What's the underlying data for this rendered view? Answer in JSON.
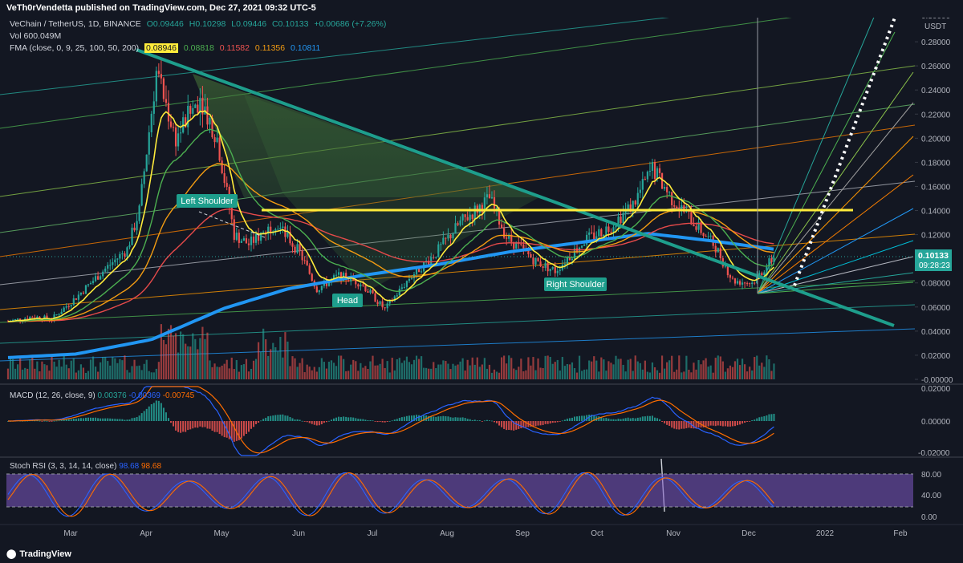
{
  "header": {
    "publisher": "VeTh0rVendetta published on TradingView.com, Dec 27, 2021 09:32 UTC-5"
  },
  "footer": {
    "brand": "TradingView"
  },
  "main_legend": {
    "symbol": "VeChain / TetherUS, 1D, BINANCE",
    "open": "O0.09446",
    "high": "H0.10298",
    "low": "L0.09446",
    "close": "C0.10133",
    "change": "+0.00686 (+7.26%)",
    "volume": "Vol 600.049M",
    "fma_label": "FMA (close, 0, 9, 25, 100, 50, 200)",
    "fma_values": [
      "0.08946",
      "0.08818",
      "0.11582",
      "0.11356",
      "0.10811"
    ]
  },
  "macd_legend": {
    "label": "MACD (12, 26, close, 9)",
    "values": [
      "0.00376",
      "-0.00369",
      "-0.00745"
    ]
  },
  "stoch_legend": {
    "label": "Stoch RSI (3, 3, 14, 14, close)",
    "values": [
      "98.68",
      "98.68"
    ]
  },
  "price_tag": {
    "price": "0.10133",
    "countdown": "09:28:23"
  },
  "colors": {
    "bg": "#131722",
    "up": "#26a69a",
    "down": "#ef5350",
    "ma200": "#2196f3",
    "ma9": "#ffeb3b",
    "neckline": "#ffeb3b",
    "trendline": "#1e9e8c",
    "stoch_k": "#2962ff",
    "stoch_d": "#ff6d00",
    "stoch_band": "#7e57c2"
  },
  "chart_data": {
    "type": "candlestick",
    "symbol": "VeChain / TetherUS",
    "interval": "1D",
    "exchange": "BINANCE",
    "x_labels": [
      "Mar",
      "Apr",
      "May",
      "Jun",
      "Jul",
      "Aug",
      "Sep",
      "Oct",
      "Nov",
      "Dec",
      "2022",
      "Feb"
    ],
    "y_ticks": [
      "0.28000",
      "0.26000",
      "0.24000",
      "0.22000",
      "0.20000",
      "0.18000",
      "0.16000",
      "0.14000",
      "0.12000",
      "0.10000",
      "0.08000",
      "0.06000",
      "0.04000",
      "0.02000",
      "-0.00000"
    ],
    "y_top_partial": "0.30000",
    "y_unit": "USDT",
    "ylim": [
      -0.002,
      0.302
    ],
    "annotations": [
      "Left Shoulder",
      "Head",
      "Right Shoulder"
    ],
    "neckline_price": 0.139,
    "price_path": [
      {
        "date": "2021-02-15",
        "close": 0.048
      },
      {
        "date": "2021-02-25",
        "close": 0.052
      },
      {
        "date": "2021-03-05",
        "close": 0.05
      },
      {
        "date": "2021-03-15",
        "close": 0.068
      },
      {
        "date": "2021-03-25",
        "close": 0.088
      },
      {
        "date": "2021-04-05",
        "close": 0.108
      },
      {
        "date": "2021-04-10",
        "close": 0.14
      },
      {
        "date": "2021-04-17",
        "close": 0.255
      },
      {
        "date": "2021-04-25",
        "close": 0.2
      },
      {
        "date": "2021-05-05",
        "close": 0.235
      },
      {
        "date": "2021-05-12",
        "close": 0.2
      },
      {
        "date": "2021-05-19",
        "close": 0.12
      },
      {
        "date": "2021-05-25",
        "close": 0.112
      },
      {
        "date": "2021-06-05",
        "close": 0.13
      },
      {
        "date": "2021-06-15",
        "close": 0.105
      },
      {
        "date": "2021-06-22",
        "close": 0.075
      },
      {
        "date": "2021-07-01",
        "close": 0.086
      },
      {
        "date": "2021-07-10",
        "close": 0.08
      },
      {
        "date": "2021-07-20",
        "close": 0.058
      },
      {
        "date": "2021-07-30",
        "close": 0.084
      },
      {
        "date": "2021-08-10",
        "close": 0.105
      },
      {
        "date": "2021-08-20",
        "close": 0.13
      },
      {
        "date": "2021-09-01",
        "close": 0.15
      },
      {
        "date": "2021-09-08",
        "close": 0.118
      },
      {
        "date": "2021-09-20",
        "close": 0.098
      },
      {
        "date": "2021-09-28",
        "close": 0.09
      },
      {
        "date": "2021-10-10",
        "close": 0.115
      },
      {
        "date": "2021-10-20",
        "close": 0.126
      },
      {
        "date": "2021-10-30",
        "close": 0.145
      },
      {
        "date": "2021-11-07",
        "close": 0.175
      },
      {
        "date": "2021-11-15",
        "close": 0.15
      },
      {
        "date": "2021-11-25",
        "close": 0.128
      },
      {
        "date": "2021-12-03",
        "close": 0.11
      },
      {
        "date": "2021-12-10",
        "close": 0.082
      },
      {
        "date": "2021-12-18",
        "close": 0.08
      },
      {
        "date": "2021-12-27",
        "close": 0.10133
      }
    ],
    "ma200_path": [
      {
        "date": "2021-02-15",
        "value": 0.018
      },
      {
        "date": "2021-03-15",
        "value": 0.021
      },
      {
        "date": "2021-04-15",
        "value": 0.033
      },
      {
        "date": "2021-05-15",
        "value": 0.059
      },
      {
        "date": "2021-06-10",
        "value": 0.075
      },
      {
        "date": "2021-07-10",
        "value": 0.086
      },
      {
        "date": "2021-08-10",
        "value": 0.095
      },
      {
        "date": "2021-09-10",
        "value": 0.106
      },
      {
        "date": "2021-10-10",
        "value": 0.114
      },
      {
        "date": "2021-11-05",
        "value": 0.121
      },
      {
        "date": "2021-12-01",
        "value": 0.115
      },
      {
        "date": "2021-12-27",
        "value": 0.108
      }
    ],
    "stoch_levels": [
      "80.00",
      "40.00",
      "0.00"
    ],
    "macd_levels": [
      "0.02000",
      "0.00000",
      "-0.02000"
    ]
  }
}
